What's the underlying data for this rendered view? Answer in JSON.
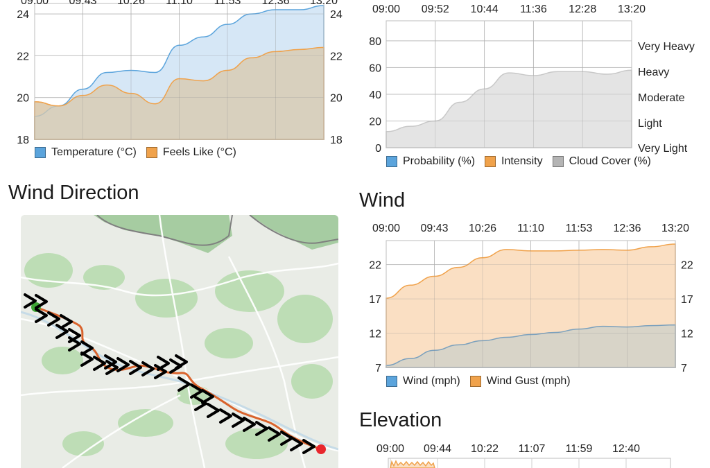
{
  "temperature_chart": {
    "time_labels": [
      "09:00",
      "09:43",
      "10:26",
      "11:10",
      "11:53",
      "12:36",
      "13:20"
    ],
    "y_ticks": [
      "24",
      "22",
      "20",
      "18"
    ],
    "legend": [
      {
        "label": "Temperature (°C)",
        "color": "#5ba4dc"
      },
      {
        "label": "Feels Like (°C)",
        "color": "#f0a24b"
      }
    ]
  },
  "precip_chart": {
    "time_labels": [
      "09:00",
      "09:52",
      "10:44",
      "11:36",
      "12:28",
      "13:20"
    ],
    "y_ticks": [
      "80",
      "60",
      "40",
      "20",
      "0"
    ],
    "intensity_labels": [
      "Very Heavy",
      "Heavy",
      "Moderate",
      "Light",
      "Very Light"
    ],
    "legend": [
      {
        "label": "Probability (%)",
        "color": "#5ba4dc"
      },
      {
        "label": "Intensity",
        "color": "#f0a24b"
      },
      {
        "label": "Cloud Cover (%)",
        "color": "#b4b4b4"
      }
    ]
  },
  "wind_direction": {
    "title": "Wind Direction"
  },
  "wind_chart": {
    "title": "Wind",
    "time_labels": [
      "09:00",
      "09:43",
      "10:26",
      "11:10",
      "11:53",
      "12:36",
      "13:20"
    ],
    "y_ticks": [
      "22",
      "17",
      "12",
      "7"
    ],
    "legend": [
      {
        "label": "Wind (mph)",
        "color": "#5ba4dc"
      },
      {
        "label": "Wind Gust (mph)",
        "color": "#f0a24b"
      }
    ]
  },
  "elevation_chart": {
    "title": "Elevation",
    "time_labels": [
      "09:00",
      "09:44",
      "10:22",
      "11:07",
      "11:59",
      "12:40"
    ]
  },
  "chart_data": [
    {
      "type": "area",
      "ylim": [
        18,
        24.5
      ],
      "x": [
        "09:00",
        "09:22",
        "09:43",
        "10:05",
        "10:26",
        "10:48",
        "11:10",
        "11:31",
        "11:53",
        "12:15",
        "12:36",
        "12:58",
        "13:20"
      ],
      "series": [
        {
          "name": "Temperature (°C)",
          "values": [
            19.1,
            19.6,
            20.4,
            21.2,
            21.3,
            21.2,
            22.5,
            22.9,
            23.5,
            24.0,
            24.2,
            24.2,
            24.4
          ]
        },
        {
          "name": "Feels Like (°C)",
          "values": [
            19.8,
            19.6,
            20.1,
            20.6,
            20.2,
            19.7,
            20.9,
            20.8,
            21.3,
            21.9,
            22.2,
            22.3,
            22.4
          ]
        }
      ]
    },
    {
      "type": "area",
      "ylim": [
        0,
        95
      ],
      "x": [
        "09:00",
        "09:26",
        "09:52",
        "10:18",
        "10:44",
        "11:10",
        "11:36",
        "12:02",
        "12:28",
        "12:54",
        "13:20"
      ],
      "series": [
        {
          "name": "Cloud Cover (%)",
          "values": [
            12,
            16,
            20,
            34,
            44,
            56,
            54,
            57,
            57,
            55,
            58
          ]
        }
      ]
    },
    {
      "type": "area",
      "ylim": [
        7,
        25.5
      ],
      "x": [
        "09:00",
        "09:22",
        "09:43",
        "10:05",
        "10:26",
        "10:48",
        "11:10",
        "11:31",
        "11:53",
        "12:15",
        "12:36",
        "12:58",
        "13:20"
      ],
      "series": [
        {
          "name": "Wind (mph)",
          "values": [
            7.3,
            8.3,
            9.5,
            10.3,
            10.9,
            11.4,
            11.8,
            12.1,
            12.6,
            13.0,
            12.9,
            13.1,
            13.2
          ]
        },
        {
          "name": "Wind Gust (mph)",
          "values": [
            17.1,
            19.0,
            20.3,
            21.6,
            23.0,
            24.2,
            24.0,
            24.0,
            24.1,
            24.2,
            24.1,
            24.6,
            25.0
          ]
        }
      ]
    }
  ]
}
